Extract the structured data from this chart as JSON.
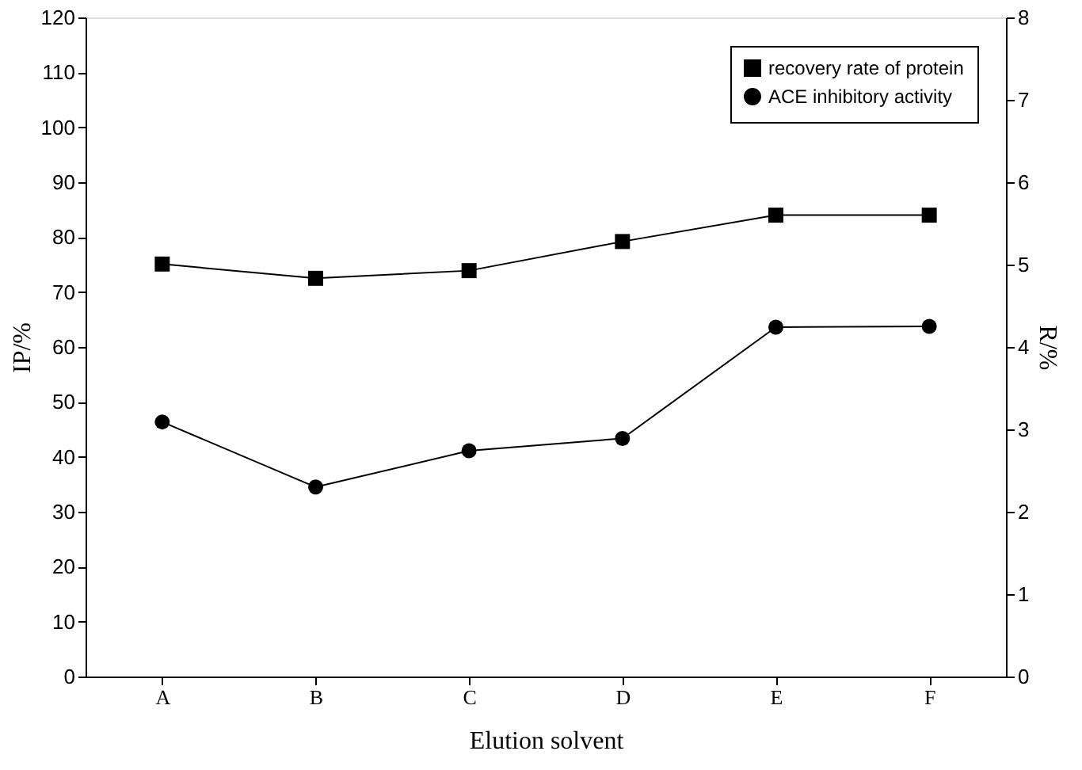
{
  "chart_data": {
    "type": "line",
    "xlabel": "Elution solvent",
    "ylabel": "IP/%",
    "y2label": "R/%",
    "categories": [
      "A",
      "B",
      "C",
      "D",
      "E",
      "F"
    ],
    "series": [
      {
        "name": "recovery rate of protein",
        "color": "#000000",
        "marker": "square",
        "values": [
          75.1,
          72.5,
          73.9,
          79.2,
          84.0,
          84.0
        ]
      },
      {
        "name": "ACE inhibitory activity",
        "color": "#000000",
        "marker": "circle",
        "axis": "y2",
        "values": [
          3.09,
          2.3,
          2.74,
          2.89,
          4.24,
          4.25
        ]
      }
    ],
    "ylim": [
      0,
      120
    ],
    "yticks": [
      0,
      10,
      20,
      30,
      40,
      50,
      60,
      70,
      80,
      90,
      100,
      110,
      120
    ],
    "y2lim": [
      0,
      8
    ],
    "y2ticks": [
      0,
      1,
      2,
      3,
      4,
      5,
      6,
      7,
      8
    ],
    "grid": false,
    "legend": "top right",
    "line_style": "solid"
  }
}
